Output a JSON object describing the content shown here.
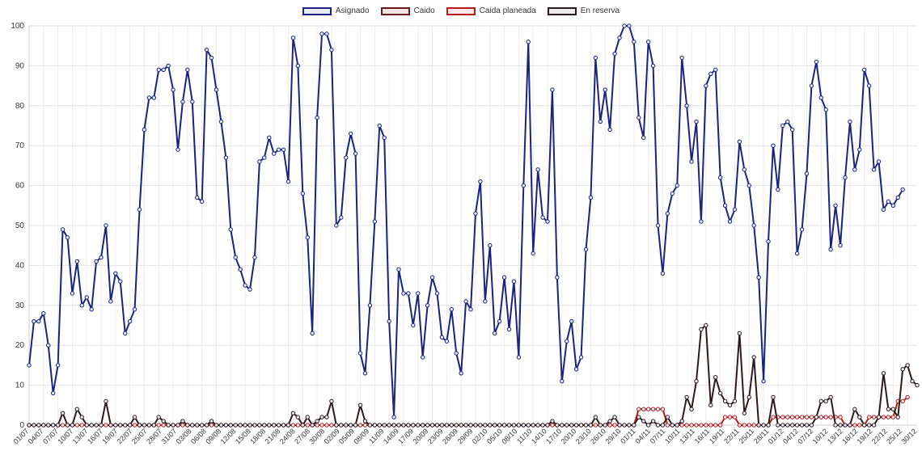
{
  "chart_data": {
    "type": "line",
    "legend_position": "top-center",
    "grid": true,
    "ylim": [
      0,
      100
    ],
    "yticks": [
      0,
      10,
      20,
      30,
      40,
      50,
      60,
      70,
      80,
      90,
      100
    ],
    "x_tick_labels": [
      "01/07",
      "04/07",
      "07/07",
      "10/07",
      "13/07",
      "16/07",
      "19/07",
      "22/07",
      "25/07",
      "28/07",
      "31/07",
      "03/08",
      "06/08",
      "09/08",
      "12/08",
      "15/08",
      "18/08",
      "21/08",
      "24/08",
      "27/08",
      "30/08",
      "02/09",
      "05/09",
      "08/09",
      "11/09",
      "14/09",
      "17/09",
      "20/09",
      "23/09",
      "26/09",
      "29/09",
      "02/10",
      "05/10",
      "08/10",
      "11/10",
      "14/10",
      "17/10",
      "20/10",
      "23/10",
      "26/10",
      "29/10",
      "01/11",
      "04/11",
      "07/11",
      "10/11",
      "13/11",
      "16/11",
      "19/11",
      "22/11",
      "25/11",
      "28/11",
      "01/12",
      "04/12",
      "07/12",
      "10/12",
      "13/12",
      "16/12",
      "19/12",
      "22/12",
      "25/12",
      "30/12"
    ],
    "series": [
      {
        "name": "Asignado",
        "color": "#1a237e",
        "values": [
          15,
          26,
          26,
          28,
          20,
          8,
          15,
          49,
          47,
          33,
          41,
          30,
          32,
          29,
          41,
          42,
          50,
          31,
          38,
          36,
          23,
          26,
          29,
          54,
          74,
          82,
          82,
          89,
          89,
          90,
          84,
          69,
          81,
          89,
          81,
          57,
          56,
          94,
          92,
          84,
          76,
          67,
          49,
          42,
          39,
          35,
          34,
          42,
          66,
          67,
          72,
          68,
          69,
          69,
          61,
          97,
          90,
          58,
          47,
          23,
          77,
          98,
          98,
          94,
          50,
          52,
          67,
          73,
          68,
          18,
          13,
          30,
          51,
          75,
          72,
          26,
          2,
          39,
          33,
          33,
          25,
          33,
          17,
          30,
          37,
          33,
          22,
          21,
          29,
          18,
          13,
          31,
          29,
          53,
          61,
          31,
          45,
          23,
          26,
          37,
          24,
          36,
          17,
          60,
          96,
          43,
          64,
          52,
          51,
          84,
          37,
          11,
          21,
          26,
          14,
          17,
          44,
          57,
          92,
          76,
          84,
          74,
          93,
          97,
          100,
          100,
          96,
          77,
          72,
          96,
          90,
          50,
          38,
          53,
          58,
          60,
          92,
          80,
          66,
          76,
          51,
          85,
          88,
          89,
          62,
          55,
          51,
          54,
          71,
          64,
          60,
          50,
          37,
          11,
          46,
          70,
          59,
          75,
          76,
          74,
          43,
          49,
          63,
          85,
          91,
          82,
          79,
          44,
          55,
          45,
          62,
          76,
          64,
          69,
          89,
          85,
          64,
          66,
          54,
          56,
          55,
          57,
          59
        ]
      },
      {
        "name": "Caido",
        "color": "#6d1b1b",
        "values": []
      },
      {
        "name": "Caida planeada",
        "color": "#b71c1c",
        "values": [
          0,
          0,
          0,
          0,
          0,
          0,
          0,
          0,
          0,
          0,
          0,
          0,
          0,
          0,
          0,
          0,
          0,
          0,
          0,
          0,
          0,
          0,
          0,
          0,
          0,
          0,
          0,
          0,
          0,
          0,
          0,
          0,
          0,
          0,
          0,
          0,
          0,
          0,
          0,
          0,
          0,
          0,
          0,
          0,
          0,
          0,
          0,
          0,
          0,
          0,
          0,
          0,
          0,
          0,
          0,
          0,
          0,
          0,
          0,
          0,
          0,
          0,
          0,
          0,
          0,
          0,
          0,
          0,
          0,
          0,
          0,
          0,
          0,
          0,
          0,
          0,
          0,
          0,
          0,
          0,
          0,
          0,
          0,
          0,
          0,
          0,
          0,
          0,
          0,
          0,
          0,
          0,
          0,
          0,
          0,
          0,
          0,
          0,
          0,
          0,
          0,
          0,
          0,
          0,
          0,
          0,
          0,
          0,
          0,
          0,
          0,
          0,
          0,
          0,
          0,
          0,
          0,
          0,
          0,
          0,
          0,
          0,
          0,
          0,
          0,
          0,
          0,
          4,
          4,
          4,
          4,
          4,
          4,
          0,
          0,
          0,
          0,
          0,
          0,
          0,
          0,
          0,
          0,
          0,
          0,
          2,
          2,
          2,
          0,
          0,
          0,
          0,
          0,
          0,
          0,
          2,
          2,
          2,
          2,
          2,
          2,
          2,
          2,
          2,
          2,
          2,
          2,
          2,
          2,
          2,
          0,
          0,
          0,
          0,
          0,
          2,
          2,
          2,
          2,
          2,
          2,
          6,
          6,
          7
        ]
      },
      {
        "name": "En reserva",
        "color": "#2b1a1a",
        "values": [
          0,
          0,
          0,
          0,
          0,
          0,
          0,
          3,
          0,
          0,
          4,
          2,
          0,
          0,
          0,
          0,
          6,
          0,
          0,
          0,
          0,
          0,
          2,
          0,
          0,
          0,
          0,
          2,
          1,
          0,
          0,
          0,
          1,
          0,
          0,
          0,
          0,
          0,
          1,
          0,
          0,
          0,
          0,
          0,
          0,
          0,
          0,
          0,
          0,
          0,
          0,
          0,
          0,
          0,
          0,
          3,
          2,
          0,
          2,
          0,
          1,
          2,
          2,
          6,
          0,
          0,
          0,
          0,
          0,
          5,
          1,
          0,
          0,
          0,
          0,
          0,
          0,
          0,
          0,
          0,
          0,
          0,
          0,
          0,
          0,
          0,
          0,
          0,
          0,
          0,
          0,
          0,
          0,
          0,
          0,
          0,
          0,
          0,
          0,
          0,
          0,
          0,
          0,
          0,
          0,
          0,
          0,
          0,
          0,
          1,
          0,
          0,
          0,
          0,
          0,
          0,
          0,
          0,
          2,
          0,
          0,
          1,
          2,
          0,
          0,
          0,
          0,
          2,
          1,
          0,
          1,
          0,
          0,
          2,
          0,
          0,
          1,
          7,
          4,
          11,
          24,
          25,
          5,
          12,
          8,
          6,
          5,
          6,
          23,
          3,
          7,
          17,
          0,
          0,
          0,
          7,
          0,
          0,
          0,
          0,
          0,
          0,
          0,
          0,
          2,
          6,
          6,
          7,
          0,
          0,
          0,
          0,
          4,
          2,
          0,
          0,
          0,
          2,
          13,
          4,
          4,
          2,
          14,
          15,
          11,
          10
        ]
      }
    ]
  }
}
